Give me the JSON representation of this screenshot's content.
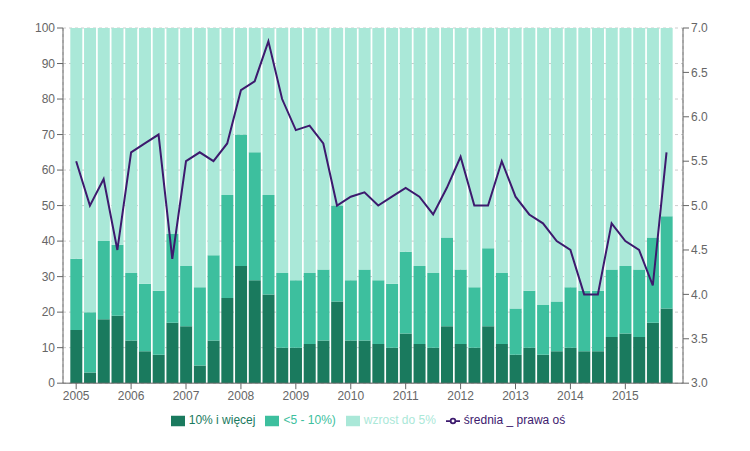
{
  "chart_data": {
    "type": "bar",
    "stacked": true,
    "grid": true,
    "legend": "bottom",
    "x": [
      2005.0,
      2005.25,
      2005.5,
      2005.75,
      2006.0,
      2006.25,
      2006.5,
      2006.75,
      2007.0,
      2007.25,
      2007.5,
      2007.75,
      2008.0,
      2008.25,
      2008.5,
      2008.75,
      2009.0,
      2009.25,
      2009.5,
      2009.75,
      2010.0,
      2010.25,
      2010.5,
      2010.75,
      2011.0,
      2011.25,
      2011.5,
      2011.75,
      2012.0,
      2012.25,
      2012.5,
      2012.75,
      2013.0,
      2013.25,
      2013.5,
      2013.75,
      2014.0,
      2014.25,
      2014.5,
      2014.75,
      2015.0,
      2015.25,
      2015.5,
      2015.75
    ],
    "xlim": [
      2004.76,
      2016.05
    ],
    "xticks": [
      2005,
      2006,
      2007,
      2008,
      2009,
      2010,
      2011,
      2012,
      2013,
      2014,
      2015
    ],
    "ylim": [
      0,
      100
    ],
    "yticks": [
      0,
      10,
      20,
      30,
      40,
      50,
      60,
      70,
      80,
      90,
      100
    ],
    "y2lim": [
      3.0,
      7.0
    ],
    "y2ticks": [
      {
        "value": 3.0,
        "label": "3.0"
      },
      3.5,
      {
        "value": 4.0,
        "label": "4.0"
      },
      4.5,
      {
        "value": 5.0,
        "label": "5.0"
      },
      5.5,
      {
        "value": 6.0,
        "label": "6.0"
      },
      6.5,
      {
        "value": 7.0,
        "label": "7.0"
      }
    ],
    "series": [
      {
        "name": "10% i więcej",
        "type": "bar",
        "color": "#1a7a5e",
        "values": [
          15,
          3,
          18,
          19,
          12,
          9,
          8,
          17,
          16,
          5,
          12,
          24,
          33,
          29,
          25,
          10,
          10,
          11,
          12,
          23,
          12,
          12,
          11,
          10,
          14,
          11,
          10,
          16,
          11,
          10,
          16,
          11,
          8,
          10,
          8,
          9,
          10,
          9,
          9,
          13,
          14,
          13,
          17,
          21
        ]
      },
      {
        "name": "<5 - 10%)",
        "type": "bar",
        "color": "#3dbf9e",
        "values": [
          20,
          17,
          22,
          20,
          19,
          19,
          18,
          25,
          17,
          22,
          24,
          29,
          37,
          36,
          28,
          21,
          19,
          20,
          20,
          27,
          17,
          20,
          18,
          18,
          23,
          22,
          21,
          25,
          21,
          17,
          22,
          20,
          13,
          16,
          14,
          14,
          17,
          17,
          17,
          19,
          19,
          19,
          24,
          26
        ]
      },
      {
        "name": "wzrost do 5%",
        "type": "bar",
        "color": "#aae8d8",
        "values": [
          65,
          80,
          60,
          61,
          69,
          72,
          74,
          58,
          67,
          73,
          64,
          47,
          30,
          35,
          47,
          69,
          71,
          69,
          68,
          50,
          71,
          68,
          71,
          72,
          63,
          67,
          69,
          59,
          68,
          73,
          62,
          69,
          79,
          74,
          78,
          77,
          73,
          74,
          74,
          68,
          67,
          68,
          59,
          53
        ]
      },
      {
        "name": "średnia _ prawa oś",
        "type": "line",
        "axis": "y2",
        "color": "#3d1a6e",
        "values": [
          5.5,
          5.0,
          5.3,
          4.5,
          5.6,
          5.7,
          5.8,
          4.4,
          5.5,
          5.6,
          5.5,
          5.7,
          6.3,
          6.4,
          6.85,
          6.2,
          5.85,
          5.9,
          5.7,
          5.0,
          5.1,
          5.15,
          5.0,
          5.1,
          5.2,
          5.1,
          4.9,
          5.2,
          5.55,
          5.0,
          5.0,
          5.5,
          5.1,
          4.9,
          4.8,
          4.6,
          4.5,
          4.0,
          4.0,
          4.8,
          4.6,
          4.5,
          4.1,
          5.6
        ]
      }
    ]
  }
}
